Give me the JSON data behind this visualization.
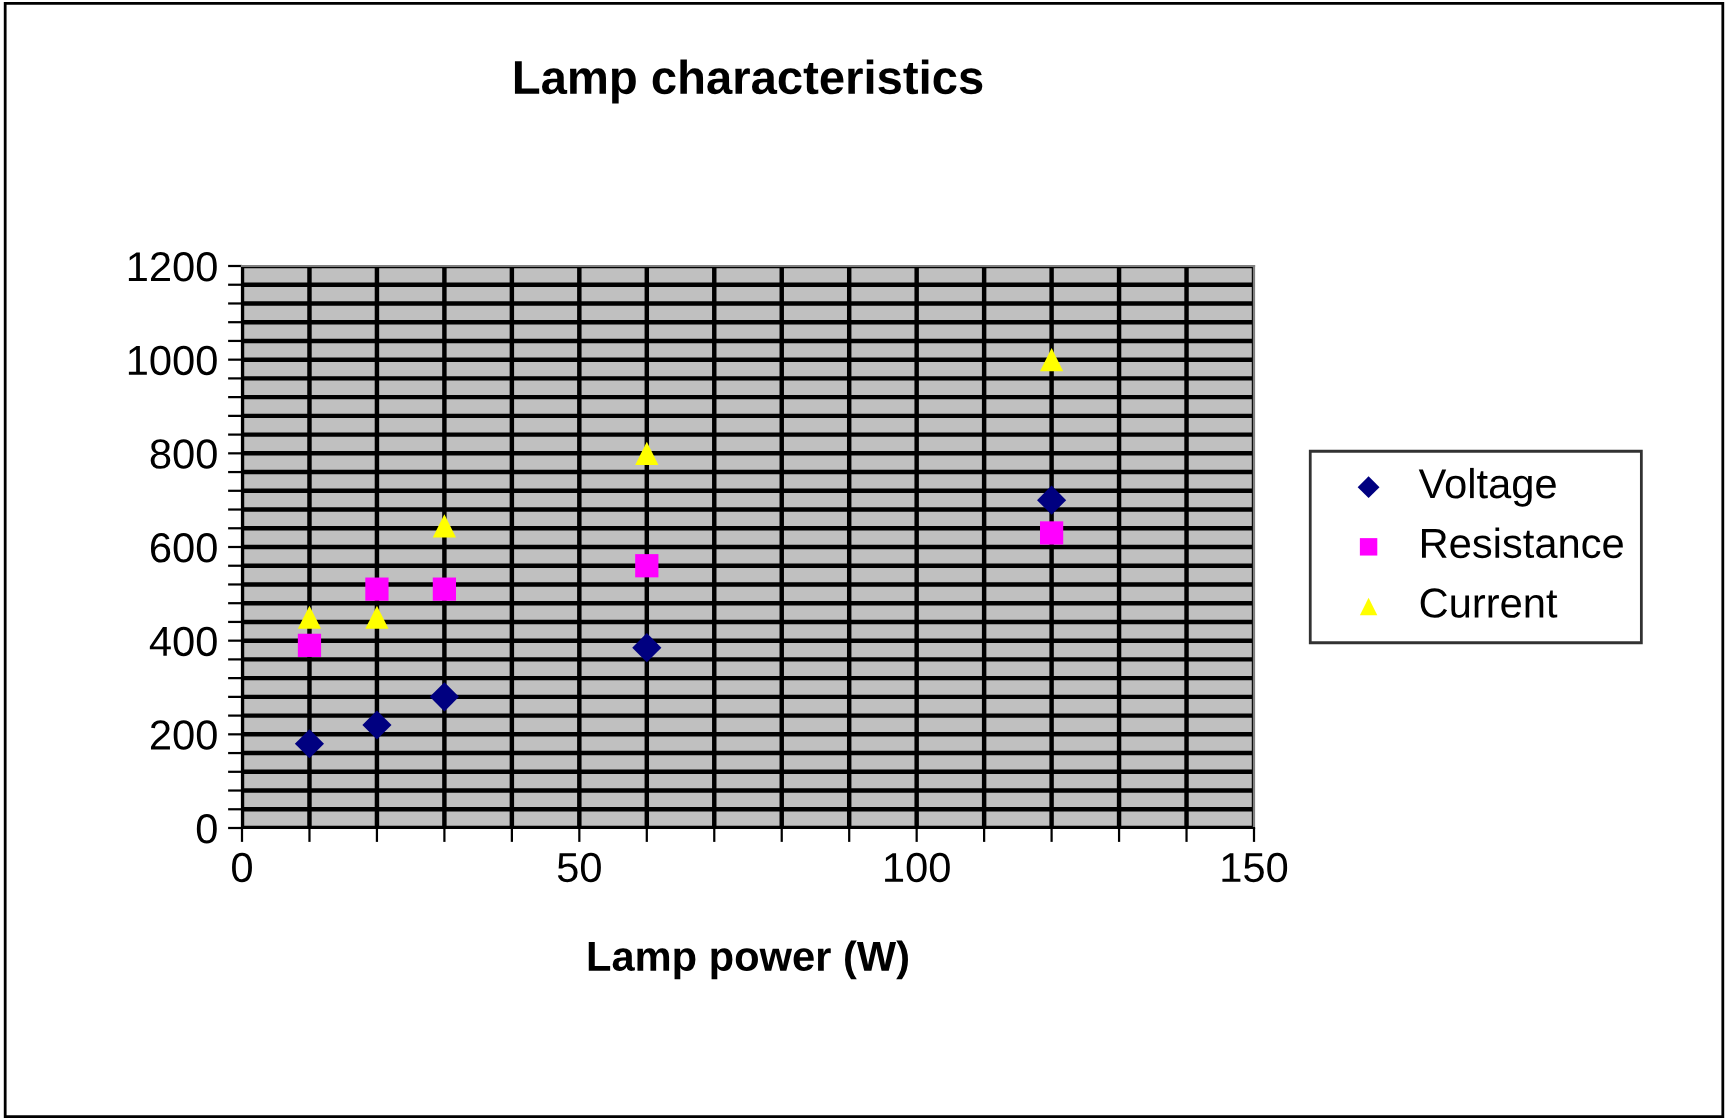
{
  "chart_data": {
    "type": "scatter",
    "title": "Lamp characteristics",
    "xlabel": "Lamp power (W)",
    "x": [
      10,
      20,
      30,
      60,
      120
    ],
    "series": [
      {
        "name": "Voltage",
        "color": "#000080",
        "marker": "diamond",
        "values": [
          180,
          220,
          280,
          385,
          700
        ]
      },
      {
        "name": "Resistance",
        "color": "#ff00ff",
        "marker": "square",
        "values": [
          390,
          510,
          510,
          560,
          630
        ]
      },
      {
        "name": "Current",
        "color": "#ffff00",
        "marker": "triangle",
        "values": [
          450,
          450,
          645,
          800,
          1000
        ]
      }
    ],
    "xlim": [
      0,
      150
    ],
    "ylim": [
      0,
      1200
    ],
    "xticks": [
      0,
      {
        "value": 10,
        "label": null
      },
      {
        "value": 20,
        "label": null
      },
      {
        "value": 30,
        "label": null
      },
      {
        "value": 40,
        "label": null
      },
      50,
      {
        "value": 60,
        "label": null
      },
      {
        "value": 70,
        "label": null
      },
      {
        "value": 80,
        "label": null
      },
      {
        "value": 90,
        "label": null
      },
      100,
      {
        "value": 110,
        "label": null
      },
      {
        "value": 120,
        "label": null
      },
      {
        "value": 130,
        "label": null
      },
      {
        "value": 140,
        "label": null
      },
      150
    ],
    "yticks": [
      0,
      {
        "value": 40,
        "label": null
      },
      {
        "value": 80,
        "label": null
      },
      {
        "value": 120,
        "label": null
      },
      {
        "value": 160,
        "label": null
      },
      200,
      {
        "value": 240,
        "label": null
      },
      {
        "value": 280,
        "label": null
      },
      {
        "value": 320,
        "label": null
      },
      {
        "value": 360,
        "label": null
      },
      400,
      {
        "value": 440,
        "label": null
      },
      {
        "value": 480,
        "label": null
      },
      {
        "value": 520,
        "label": null
      },
      {
        "value": 560,
        "label": null
      },
      600,
      {
        "value": 640,
        "label": null
      },
      {
        "value": 680,
        "label": null
      },
      {
        "value": 720,
        "label": null
      },
      {
        "value": 760,
        "label": null
      },
      800,
      {
        "value": 840,
        "label": null
      },
      {
        "value": 880,
        "label": null
      },
      {
        "value": 920,
        "label": null
      },
      {
        "value": 960,
        "label": null
      },
      1000,
      {
        "value": 1040,
        "label": null
      },
      {
        "value": 1080,
        "label": null
      },
      {
        "value": 1120,
        "label": null
      },
      {
        "value": 1160,
        "label": null
      },
      1200
    ],
    "grid": true,
    "legend": "right"
  }
}
